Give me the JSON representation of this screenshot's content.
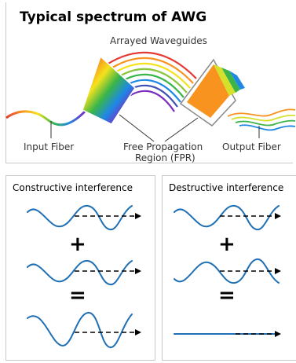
{
  "awg": {
    "title": "Typical spectrum of AWG",
    "labels": {
      "waveguides": "Arrayed Waveguides",
      "input": "Input Fiber",
      "fpr_line1": "Free Propagation",
      "fpr_line2": "Region (FPR)",
      "output": "Output Fiber"
    },
    "colors": {
      "output_wedge": "#f7931e",
      "output_fibers": [
        "#f7931e",
        "#d4e02a",
        "#3cb44b",
        "#1e88e5"
      ]
    }
  },
  "constructive": {
    "title": "Constructive interference",
    "plus": "+",
    "equals": "="
  },
  "destructive": {
    "title": "Destructive interference",
    "plus": "+",
    "equals": "="
  },
  "colors": {
    "wave": "#1f6fb4",
    "arrow": "#000000"
  }
}
